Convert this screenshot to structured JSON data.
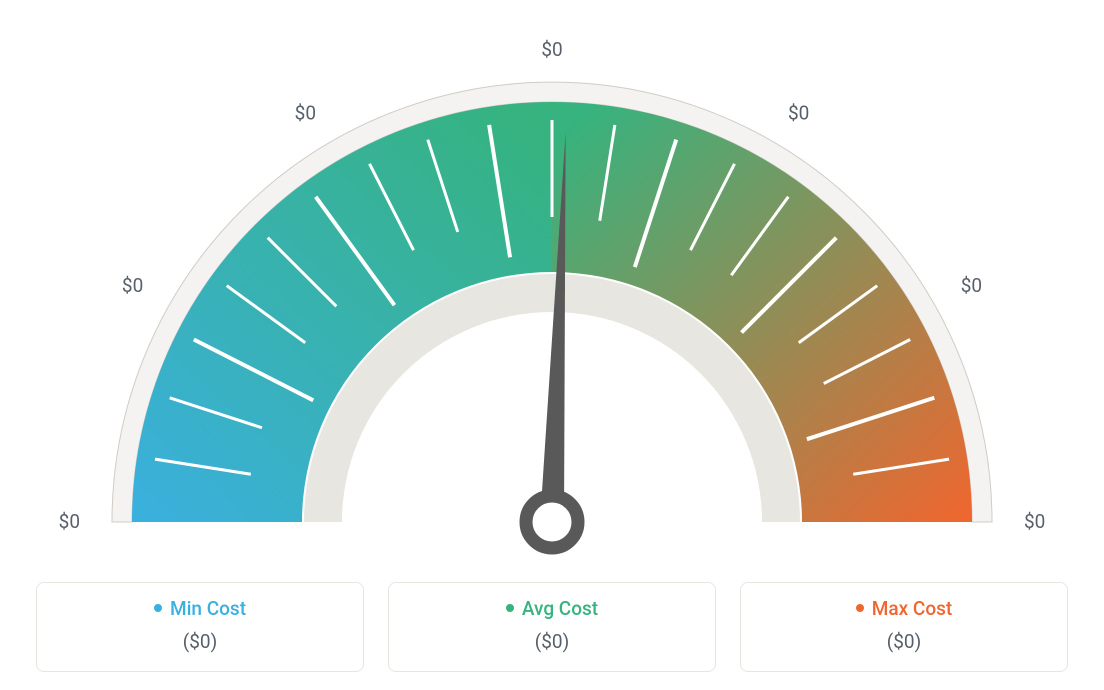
{
  "gauge": {
    "type": "gauge",
    "tick_labels": [
      "$0",
      "$0",
      "$0",
      "$0",
      "$0",
      "$0",
      "$0"
    ],
    "needle_angle_deg": 2,
    "color_arc_start": "#3ab0df",
    "color_arc_mid": "#36b37e",
    "color_arc_end": "#f0662e",
    "outer_ring_fill": "#f4f3f1",
    "outer_ring_stroke": "#d0ccc4",
    "inner_ring_fill": "#e8e6e1",
    "tick_stroke": "#ffffff",
    "tick_label_color": "#57606a",
    "needle_color": "#595959",
    "outer_radius": 440,
    "color_arc_outer": 420,
    "color_arc_inner": 250,
    "inner_ring_outer": 248,
    "inner_ring_inner": 210,
    "gauge_start_deg": 180,
    "gauge_span_deg": 180,
    "minor_tick_count": 21,
    "label_fontsize": 19
  },
  "legend": {
    "cards": [
      {
        "label": "Min Cost",
        "value": "($0)",
        "dot_color": "#3ab0df",
        "text_color": "#3ab0df"
      },
      {
        "label": "Avg Cost",
        "value": "($0)",
        "dot_color": "#36b37e",
        "text_color": "#36b37e"
      },
      {
        "label": "Max Cost",
        "value": "($0)",
        "dot_color": "#f0662e",
        "text_color": "#f0662e"
      }
    ],
    "card_border_color": "#e8e6e1",
    "card_bg": "#ffffff",
    "value_color": "#57606a"
  },
  "background_color": "#ffffff"
}
